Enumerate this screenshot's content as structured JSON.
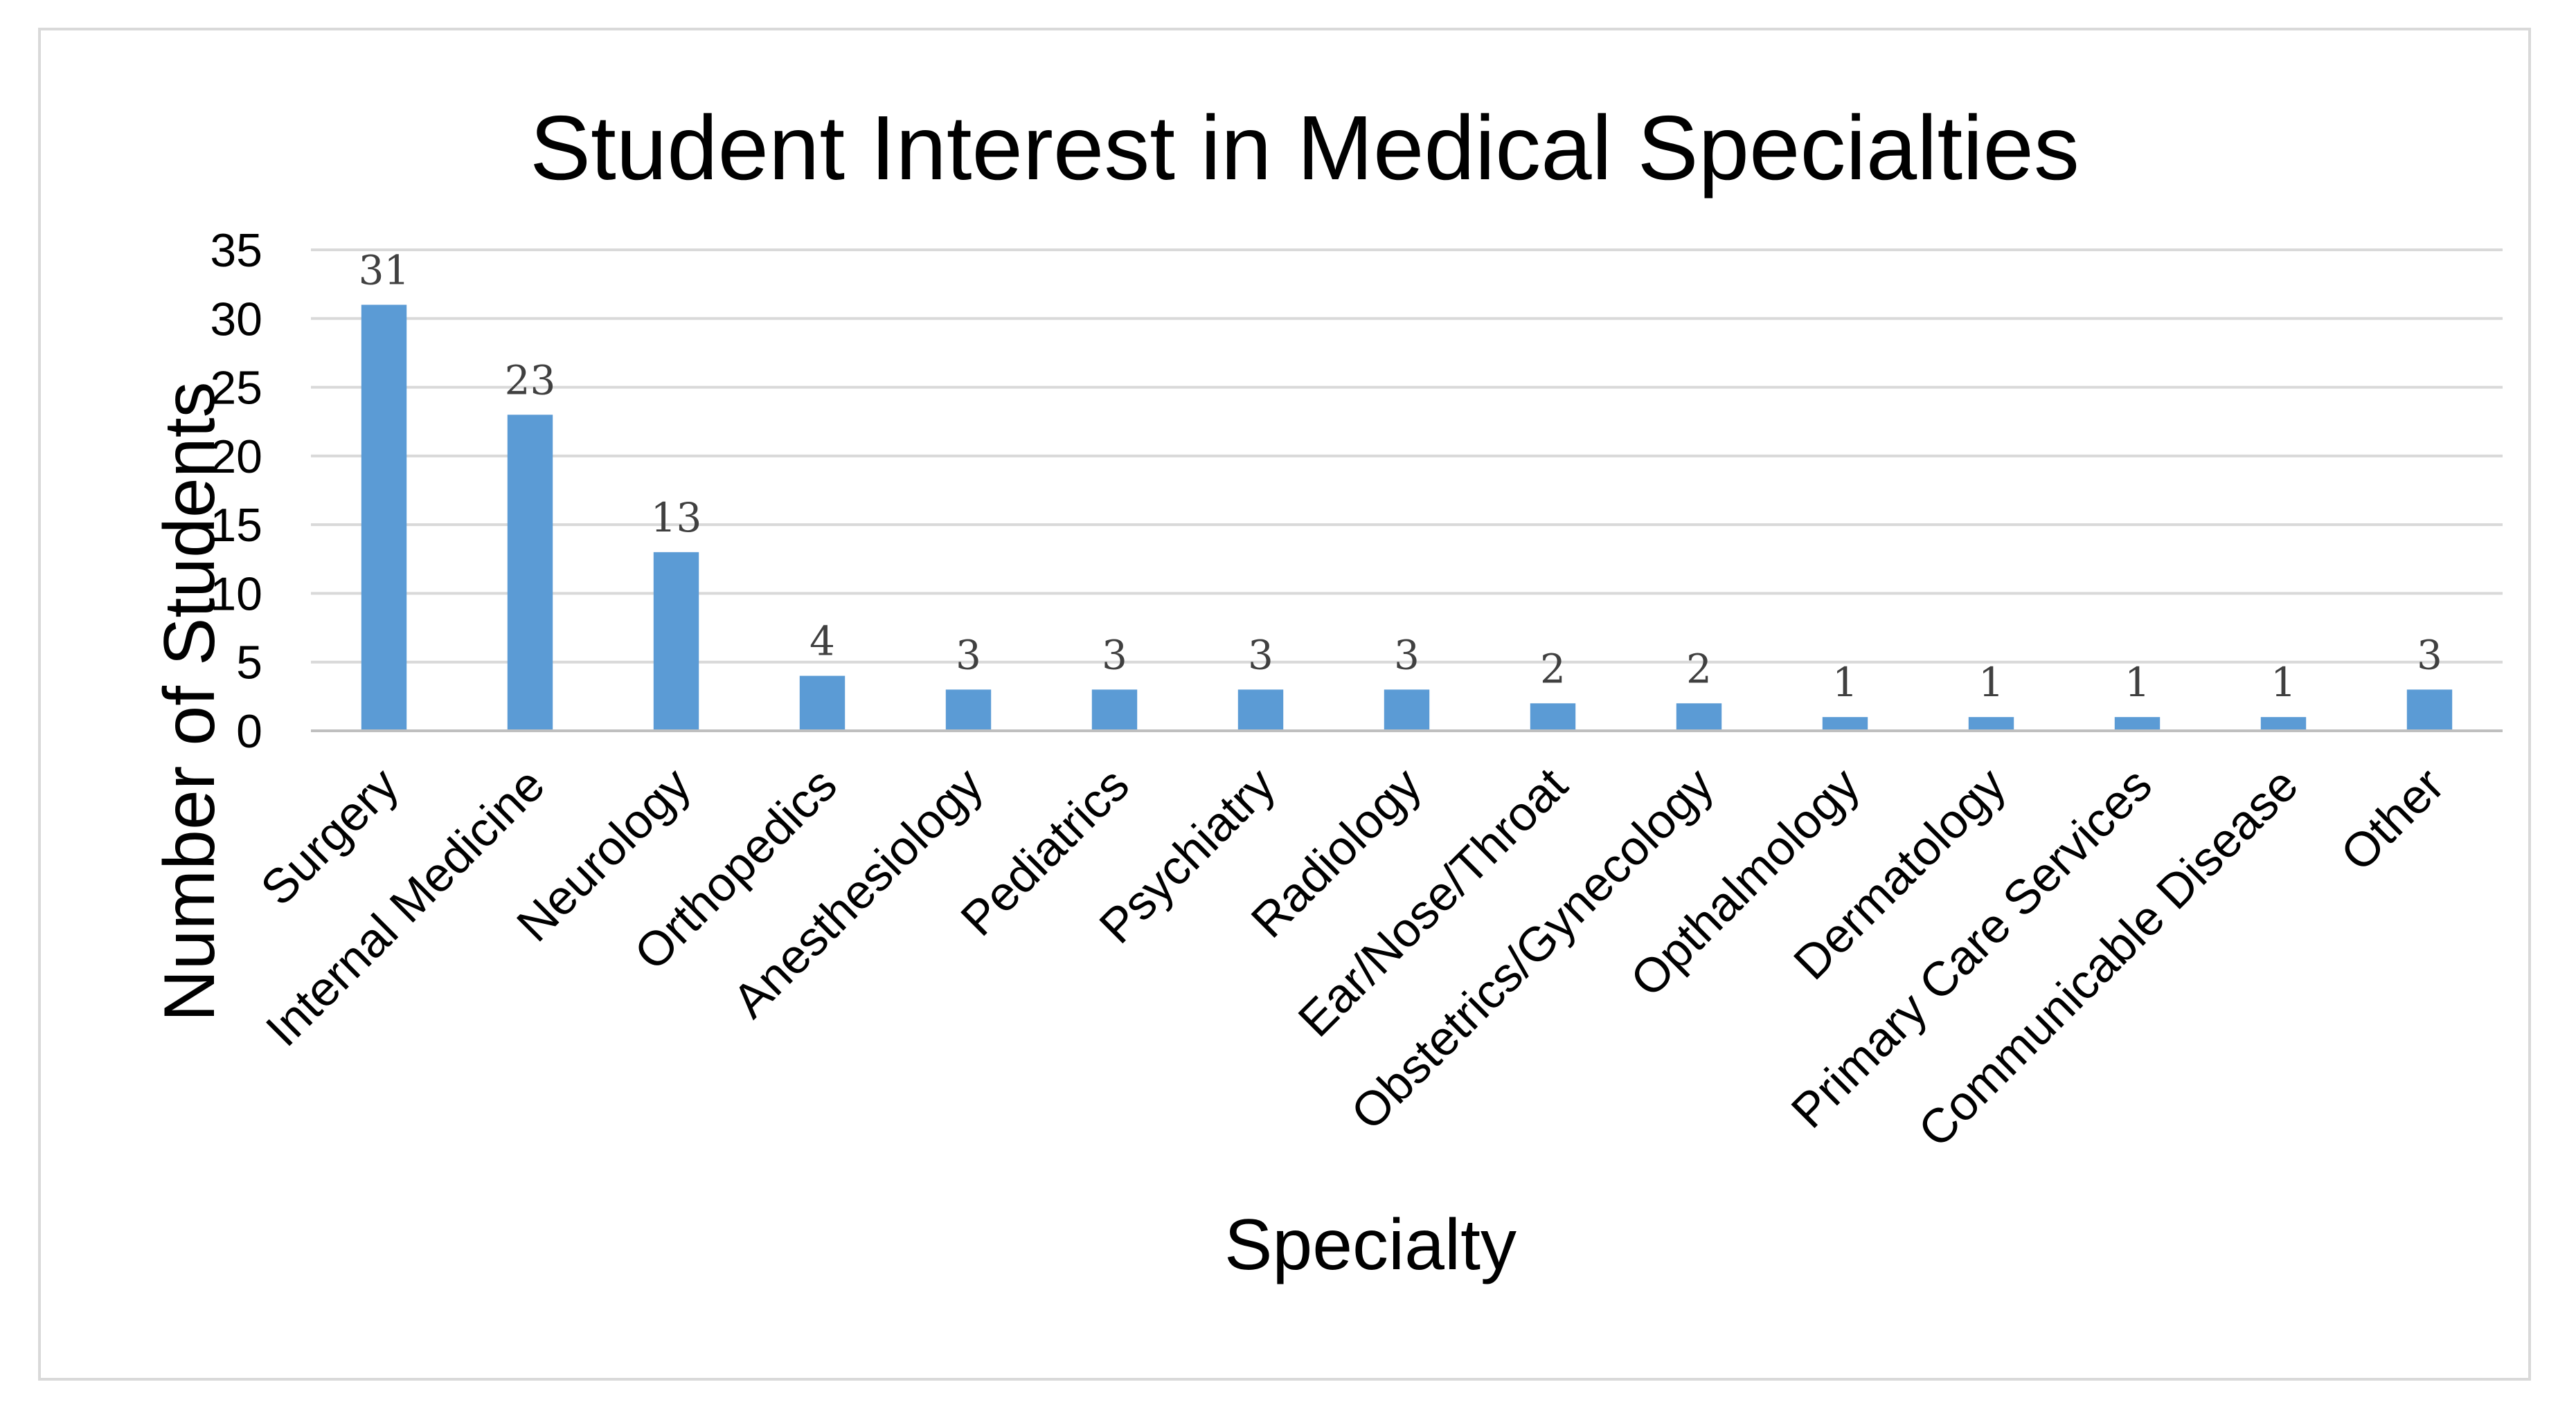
{
  "chart_data": {
    "type": "bar",
    "title": "Student Interest in Medical Specialties",
    "xlabel": "Specialty",
    "ylabel": "Number of Students",
    "categories": [
      "Surgery",
      "Internal Medicine",
      "Neurology",
      "Orthopedics",
      "Anesthesiology",
      "Pediatrics",
      "Psychiatry",
      "Radiology",
      "Ear/Nose/Throat",
      "Obstetrics/Gynecology",
      "Opthalmology",
      "Dermatology",
      "Primary Care Services",
      "Communicable Disease",
      "Other"
    ],
    "values": [
      31,
      23,
      13,
      4,
      3,
      3,
      3,
      3,
      2,
      2,
      1,
      1,
      1,
      1,
      3
    ],
    "ylim": [
      0,
      35
    ],
    "yticks": [
      0,
      5,
      10,
      15,
      20,
      25,
      30,
      35
    ],
    "grid": true,
    "data_labels": true,
    "bar_color": "#5b9bd5"
  }
}
